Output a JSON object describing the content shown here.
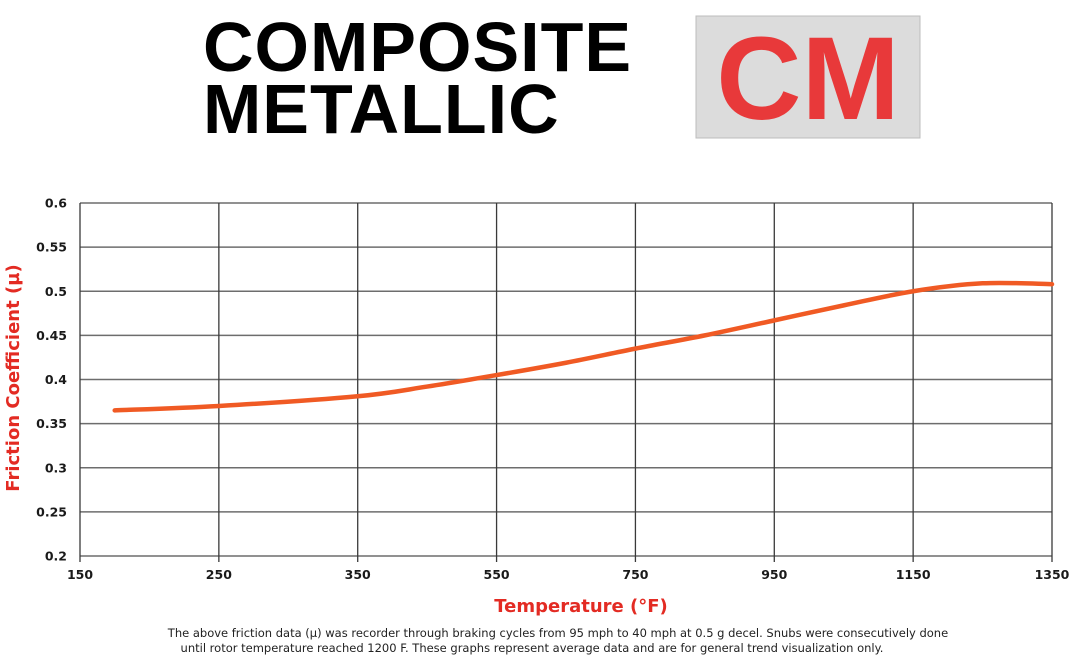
{
  "header": {
    "title_line1": "COMPOSITE",
    "title_line2": "METALLIC",
    "badge": "CM",
    "badge_color": "#e8393a",
    "badge_bg": "#dcdcdc"
  },
  "chart_data": {
    "type": "line",
    "xlabel": "Temperature (°F)",
    "ylabel": "Friction Coefficient (µ)",
    "x_ticks": [
      "150",
      "250",
      "350",
      "550",
      "750",
      "950",
      "1150",
      "1350"
    ],
    "y_ticks": [
      "0.6",
      "0.55",
      "0.5",
      "0.45",
      "0.4",
      "0.35",
      "0.3",
      "0.25",
      "0.2"
    ],
    "ylim": [
      0.2,
      0.6
    ],
    "xlim": [
      150,
      1350
    ],
    "grid": true,
    "line_color": "#f05a24",
    "label_color": "#e32b23",
    "series": [
      {
        "x": [
          175,
          250,
          350,
          450,
          550,
          650,
          750,
          850,
          950,
          1050,
          1150,
          1250,
          1350
        ],
        "y": [
          0.365,
          0.37,
          0.381,
          0.392,
          0.405,
          0.419,
          0.435,
          0.45,
          0.467,
          0.484,
          0.5,
          0.509,
          0.508
        ]
      }
    ]
  },
  "footnote": {
    "line1": "The above friction data (µ) was recorder through braking cycles from 95 mph to 40 mph at 0.5 g decel. Snubs were consecutively done",
    "line2": "until rotor temperature reached 1200 F. These graphs represent average data and are for general trend visualization only."
  }
}
